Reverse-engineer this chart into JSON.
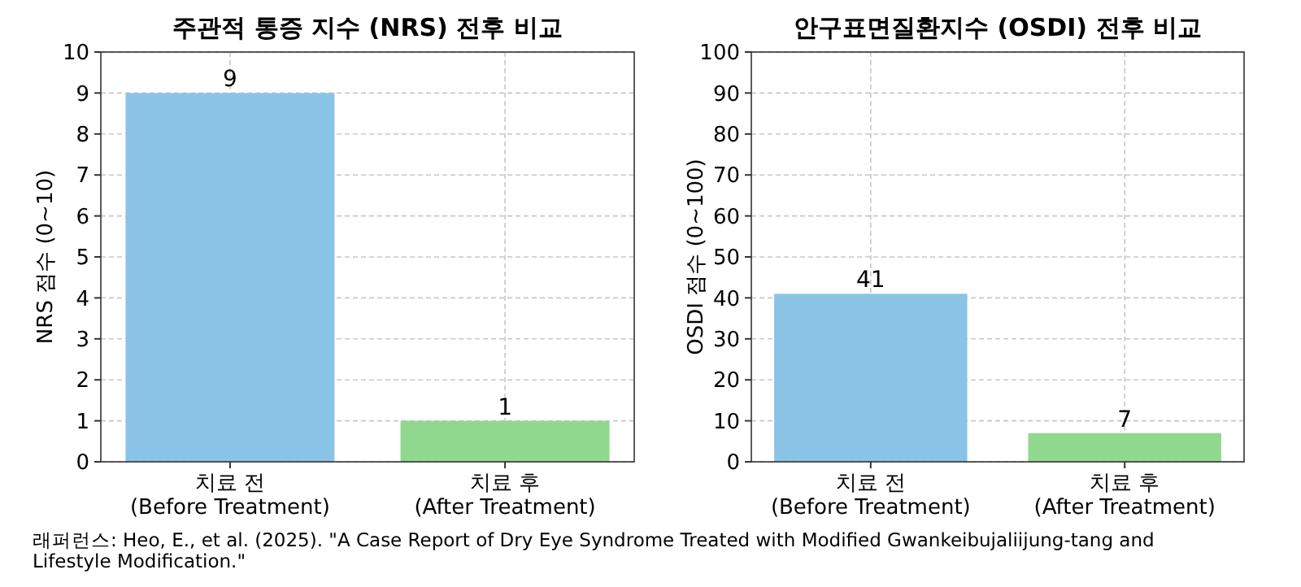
{
  "chart_data": [
    {
      "type": "bar",
      "title": "주관적 통증 지수 (NRS) 전후 비교",
      "ylabel": "NRS 점수 (0~10)",
      "categories": [
        "치료 전\n(Before Treatment)",
        "치료 후\n(After Treatment)"
      ],
      "values": [
        9,
        1
      ],
      "colors": [
        "#89c4e6",
        "#90d88e"
      ],
      "ylim": [
        0,
        10
      ],
      "yticks": [
        0,
        1,
        2,
        3,
        4,
        5,
        6,
        7,
        8,
        9,
        10
      ],
      "grid": true,
      "data_labels": true,
      "annotations": [
        "래퍼런스: Heo, E., et al. (2025). \"A Case Report of Dry Eye Syndrome Treated with Modified Gwankeibujaliijung-tang and Lifestyle Modification.\""
      ]
    },
    {
      "type": "bar",
      "title": "안구표면질환지수 (OSDI) 전후 비교",
      "ylabel": "OSDI 점수 (0~100)",
      "categories": [
        "치료 전\n(Before Treatment)",
        "치료 후\n(After Treatment)"
      ],
      "values": [
        41,
        7
      ],
      "colors": [
        "#89c4e6",
        "#90d88e"
      ],
      "ylim": [
        0,
        100
      ],
      "yticks": [
        0,
        10,
        20,
        30,
        40,
        50,
        60,
        70,
        80,
        90,
        100
      ],
      "grid": true,
      "data_labels": true
    }
  ]
}
